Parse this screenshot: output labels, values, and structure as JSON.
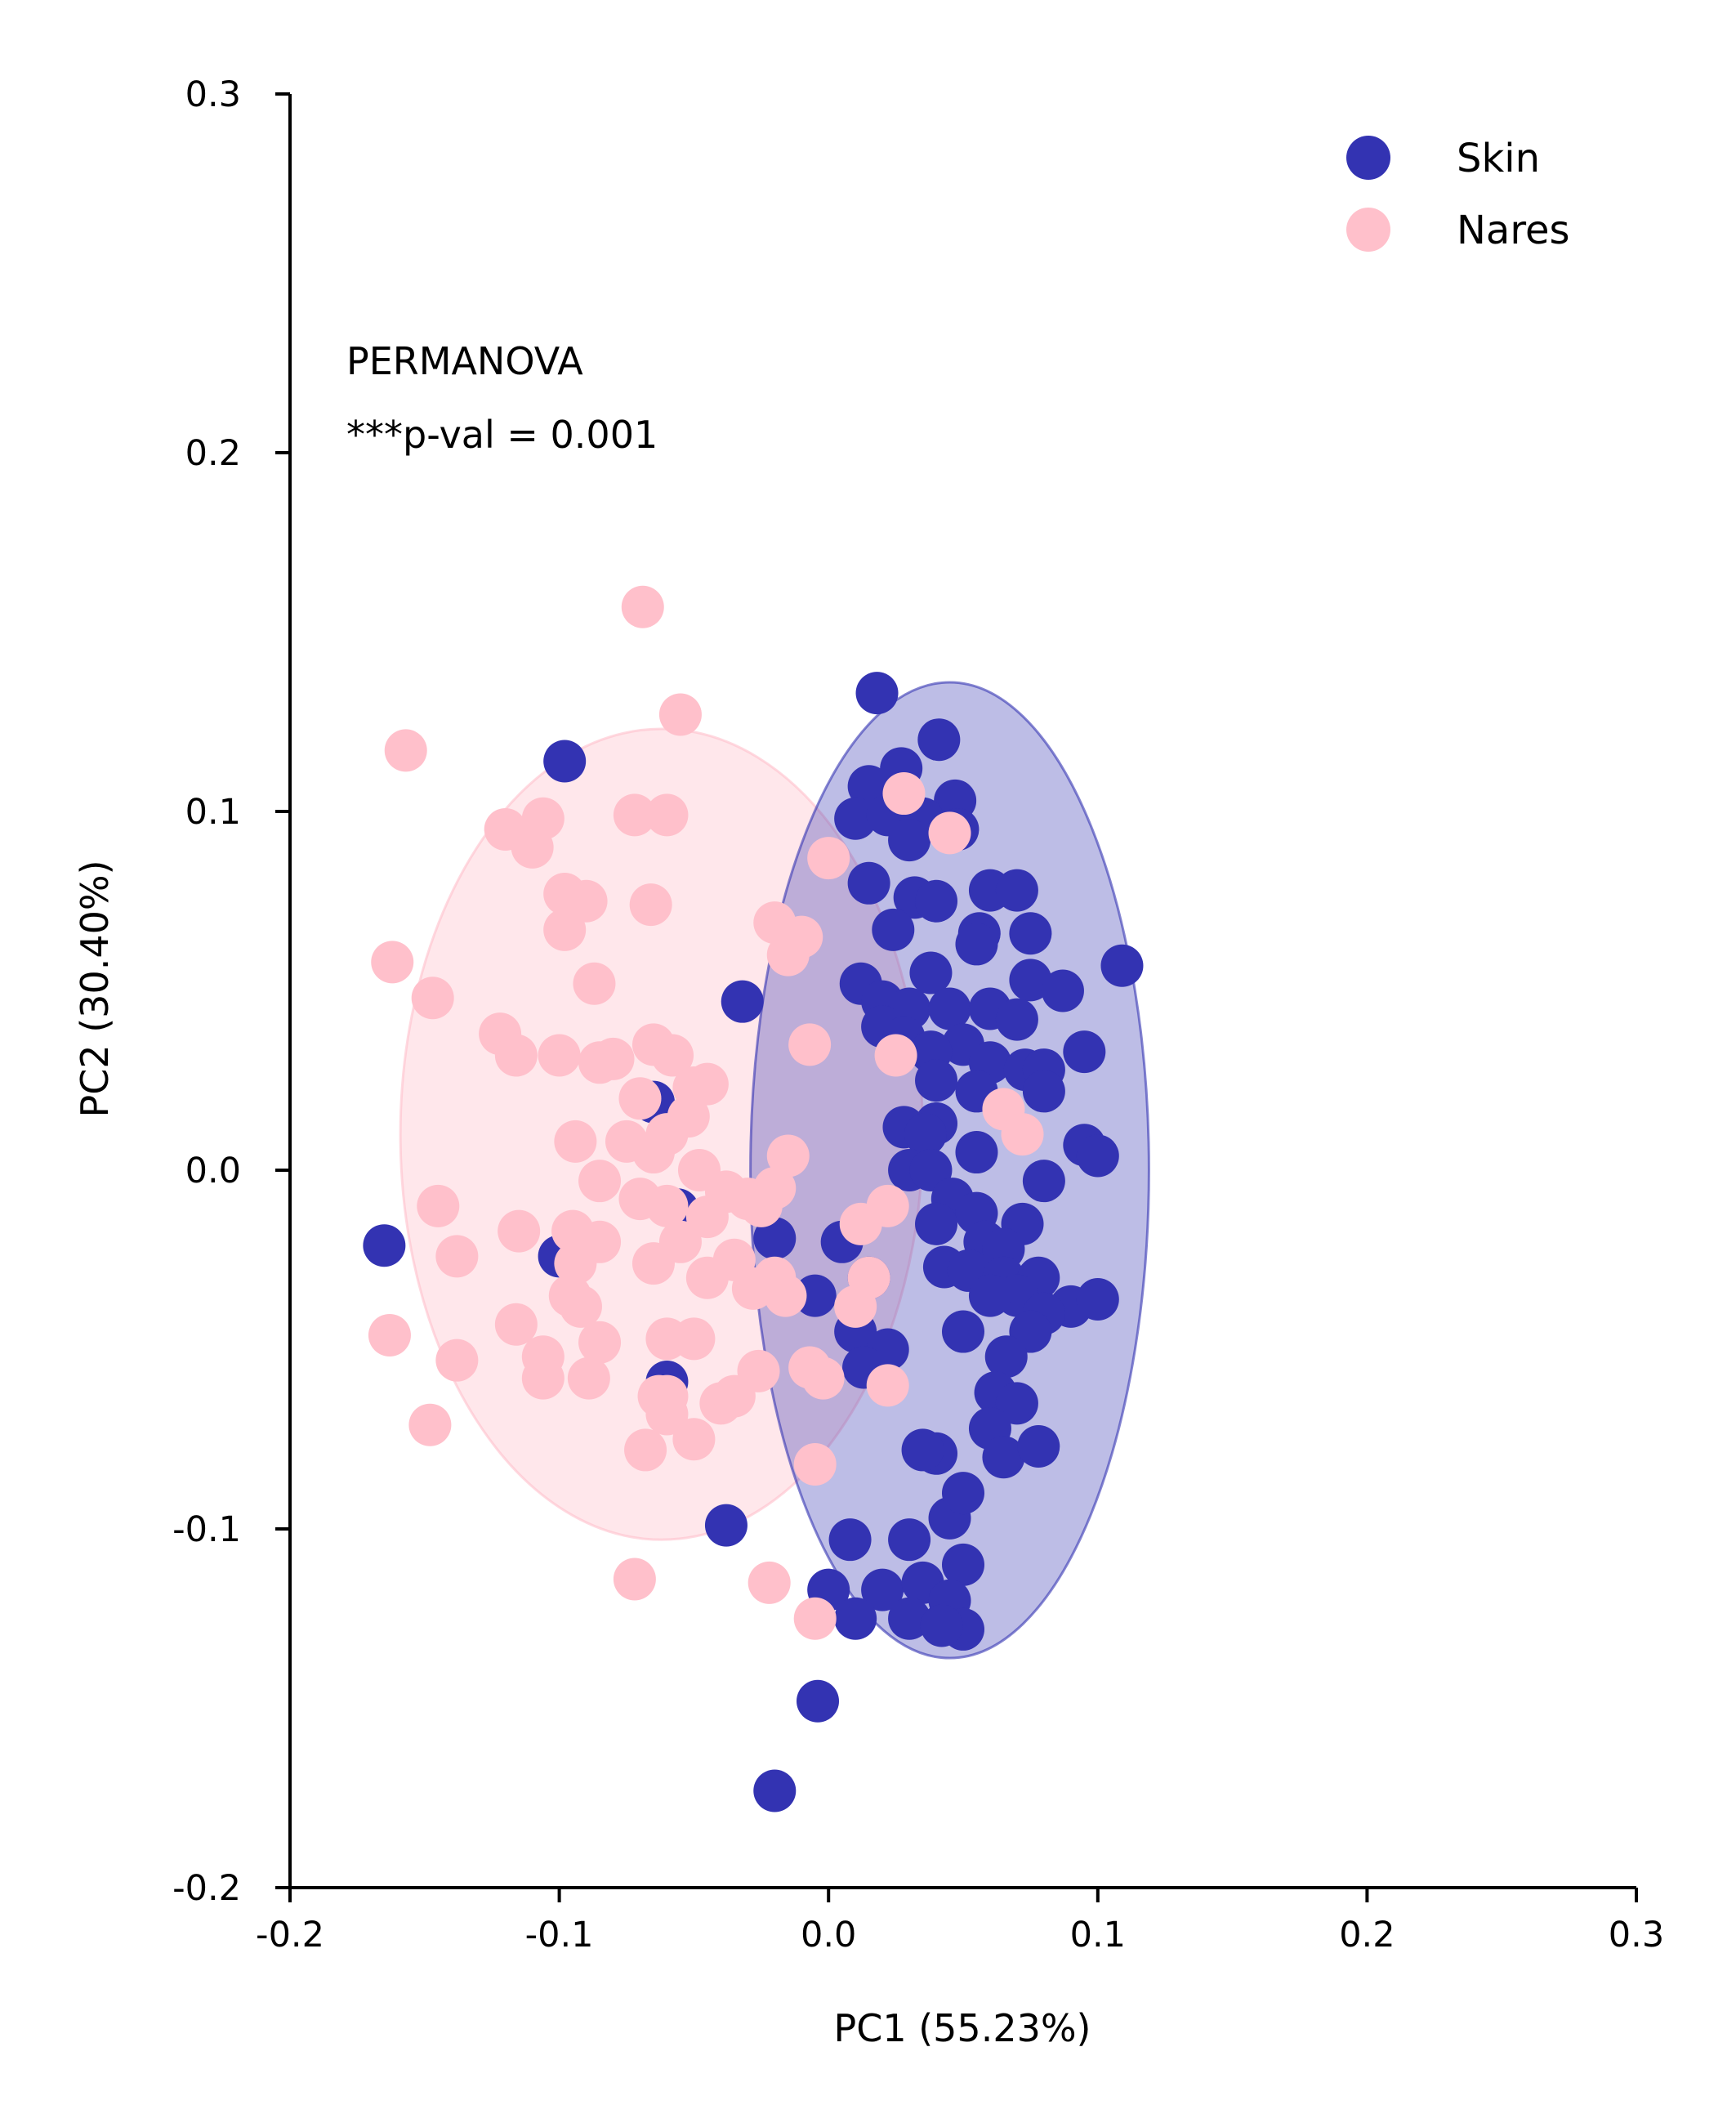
{
  "chart_data": {
    "type": "scatter",
    "title": "",
    "xlabel": "PC1 (55.23%)",
    "ylabel": "PC2 (30.40%)",
    "xlim": [
      -0.2,
      0.3
    ],
    "ylim": [
      -0.2,
      0.3
    ],
    "xticks": [
      -0.2,
      -0.1,
      0.0,
      0.1,
      0.2,
      0.3
    ],
    "yticks": [
      -0.2,
      -0.1,
      0.0,
      0.1,
      0.2,
      0.3
    ],
    "xtick_labels": [
      "-0.2",
      "-0.1",
      "0.0",
      "0.1",
      "0.2",
      "0.3"
    ],
    "ytick_labels": [
      "-0.2",
      "-0.1",
      "0.0",
      "0.1",
      "0.2",
      "0.3"
    ],
    "grid": false,
    "legend_position": "top-right",
    "annotations": [
      "PERMANOVA",
      "***p-val = 0.001"
    ],
    "series": [
      {
        "name": "Skin",
        "color": "#3333b2",
        "ellipse": {
          "cx": 0.045,
          "cy": 0.0,
          "rx": 0.074,
          "ry": 0.136
        },
        "points": [
          [
            0.018,
            0.133
          ],
          [
            0.041,
            0.12
          ],
          [
            -0.098,
            0.114
          ],
          [
            0.027,
            0.112
          ],
          [
            0.015,
            0.107
          ],
          [
            0.047,
            0.103
          ],
          [
            0.01,
            0.098
          ],
          [
            0.022,
            0.099
          ],
          [
            0.035,
            0.098
          ],
          [
            0.048,
            0.095
          ],
          [
            0.03,
            0.092
          ],
          [
            0.015,
            0.08
          ],
          [
            0.032,
            0.076
          ],
          [
            0.06,
            0.078
          ],
          [
            0.07,
            0.078
          ],
          [
            0.04,
            0.075
          ],
          [
            0.056,
            0.066
          ],
          [
            0.075,
            0.066
          ],
          [
            0.024,
            0.067
          ],
          [
            0.055,
            0.063
          ],
          [
            0.109,
            0.057
          ],
          [
            0.012,
            0.052
          ],
          [
            0.038,
            0.055
          ],
          [
            0.02,
            0.047
          ],
          [
            -0.032,
            0.047
          ],
          [
            0.075,
            0.053
          ],
          [
            0.087,
            0.05
          ],
          [
            0.03,
            0.045
          ],
          [
            0.045,
            0.045
          ],
          [
            0.06,
            0.045
          ],
          [
            0.07,
            0.042
          ],
          [
            0.02,
            0.04
          ],
          [
            0.028,
            0.037
          ],
          [
            0.05,
            0.035
          ],
          [
            0.038,
            0.033
          ],
          [
            0.06,
            0.03
          ],
          [
            0.073,
            0.028
          ],
          [
            0.08,
            0.028
          ],
          [
            0.095,
            0.033
          ],
          [
            0.04,
            0.025
          ],
          [
            0.055,
            0.022
          ],
          [
            0.08,
            0.022
          ],
          [
            -0.065,
            0.019
          ],
          [
            0.028,
            0.012
          ],
          [
            0.04,
            0.013
          ],
          [
            0.036,
            0.01
          ],
          [
            0.095,
            0.007
          ],
          [
            0.1,
            0.004
          ],
          [
            0.055,
            0.005
          ],
          [
            0.03,
            0.0
          ],
          [
            0.038,
            0.0
          ],
          [
            0.08,
            -0.003
          ],
          [
            0.046,
            -0.008
          ],
          [
            0.055,
            -0.012
          ],
          [
            0.04,
            -0.015
          ],
          [
            0.072,
            -0.015
          ],
          [
            0.058,
            -0.02
          ],
          [
            0.065,
            -0.022
          ],
          [
            -0.02,
            -0.019
          ],
          [
            0.005,
            -0.02
          ],
          [
            -0.1,
            -0.024
          ],
          [
            0.043,
            -0.027
          ],
          [
            0.052,
            -0.028
          ],
          [
            0.015,
            -0.03
          ],
          [
            0.065,
            -0.03
          ],
          [
            0.078,
            -0.03
          ],
          [
            0.09,
            -0.038
          ],
          [
            0.1,
            -0.036
          ],
          [
            0.07,
            -0.035
          ],
          [
            0.06,
            -0.035
          ],
          [
            0.08,
            -0.04
          ],
          [
            0.075,
            -0.045
          ],
          [
            0.05,
            -0.045
          ],
          [
            -0.005,
            -0.035
          ],
          [
            0.01,
            -0.045
          ],
          [
            0.022,
            -0.05
          ],
          [
            0.013,
            -0.055
          ],
          [
            0.066,
            -0.052
          ],
          [
            0.062,
            -0.062
          ],
          [
            0.07,
            -0.065
          ],
          [
            0.06,
            -0.072
          ],
          [
            0.065,
            -0.08
          ],
          [
            0.078,
            -0.077
          ],
          [
            0.04,
            -0.079
          ],
          [
            0.045,
            -0.097
          ],
          [
            0.05,
            -0.09
          ],
          [
            0.035,
            -0.078
          ],
          [
            -0.06,
            -0.059
          ],
          [
            -0.038,
            -0.099
          ],
          [
            0.008,
            -0.103
          ],
          [
            0.03,
            -0.103
          ],
          [
            0.05,
            -0.11
          ],
          [
            0.02,
            -0.117
          ],
          [
            0.035,
            -0.115
          ],
          [
            0.045,
            -0.12
          ],
          [
            0.0,
            -0.117
          ],
          [
            0.01,
            -0.125
          ],
          [
            0.03,
            -0.125
          ],
          [
            0.05,
            -0.128
          ],
          [
            0.042,
            -0.127
          ],
          [
            -0.165,
            -0.021
          ],
          [
            -0.056,
            -0.011
          ],
          [
            -0.004,
            -0.148
          ],
          [
            -0.02,
            -0.173
          ]
        ]
      },
      {
        "name": "Nares",
        "color": "#ffc0cb",
        "ellipse": {
          "cx": -0.062,
          "cy": 0.01,
          "rx": 0.097,
          "ry": 0.113
        },
        "points": [
          [
            -0.069,
            0.157
          ],
          [
            -0.055,
            0.127
          ],
          [
            -0.157,
            0.117
          ],
          [
            -0.072,
            0.099
          ],
          [
            -0.06,
            0.099
          ],
          [
            -0.12,
            0.095
          ],
          [
            -0.106,
            0.098
          ],
          [
            -0.11,
            0.09
          ],
          [
            -0.098,
            0.077
          ],
          [
            -0.09,
            0.075
          ],
          [
            -0.066,
            0.074
          ],
          [
            -0.098,
            0.067
          ],
          [
            -0.02,
            0.069
          ],
          [
            -0.01,
            0.065
          ],
          [
            0.0,
            0.087
          ],
          [
            -0.015,
            0.06
          ],
          [
            -0.162,
            0.058
          ],
          [
            -0.087,
            0.052
          ],
          [
            -0.147,
            0.048
          ],
          [
            -0.122,
            0.038
          ],
          [
            -0.116,
            0.032
          ],
          [
            -0.1,
            0.032
          ],
          [
            -0.085,
            0.03
          ],
          [
            -0.08,
            0.031
          ],
          [
            -0.065,
            0.035
          ],
          [
            -0.058,
            0.032
          ],
          [
            -0.05,
            0.023
          ],
          [
            -0.045,
            0.024
          ],
          [
            -0.06,
            0.01
          ],
          [
            -0.07,
            0.02
          ],
          [
            -0.052,
            0.015
          ],
          [
            -0.094,
            0.008
          ],
          [
            -0.075,
            0.008
          ],
          [
            -0.065,
            0.005
          ],
          [
            -0.048,
            0.0
          ],
          [
            -0.085,
            -0.003
          ],
          [
            -0.07,
            -0.008
          ],
          [
            -0.145,
            -0.01
          ],
          [
            -0.115,
            -0.017
          ],
          [
            -0.095,
            -0.017
          ],
          [
            -0.085,
            -0.02
          ],
          [
            -0.06,
            -0.01
          ],
          [
            -0.045,
            -0.013
          ],
          [
            -0.038,
            -0.006
          ],
          [
            -0.03,
            -0.008
          ],
          [
            -0.015,
            0.004
          ],
          [
            -0.02,
            -0.005
          ],
          [
            -0.025,
            -0.01
          ],
          [
            -0.138,
            -0.024
          ],
          [
            -0.094,
            -0.026
          ],
          [
            -0.065,
            -0.026
          ],
          [
            -0.055,
            -0.02
          ],
          [
            -0.045,
            -0.03
          ],
          [
            -0.035,
            -0.025
          ],
          [
            -0.028,
            -0.033
          ],
          [
            -0.02,
            -0.03
          ],
          [
            -0.016,
            -0.035
          ],
          [
            -0.116,
            -0.043
          ],
          [
            -0.096,
            -0.035
          ],
          [
            -0.092,
            -0.038
          ],
          [
            -0.163,
            -0.046
          ],
          [
            -0.085,
            -0.048
          ],
          [
            -0.06,
            -0.047
          ],
          [
            -0.05,
            -0.047
          ],
          [
            -0.106,
            -0.052
          ],
          [
            -0.138,
            -0.053
          ],
          [
            -0.106,
            -0.058
          ],
          [
            -0.089,
            -0.058
          ],
          [
            -0.063,
            -0.063
          ],
          [
            -0.06,
            -0.068
          ],
          [
            -0.04,
            -0.065
          ],
          [
            -0.035,
            -0.063
          ],
          [
            -0.026,
            -0.056
          ],
          [
            -0.007,
            -0.055
          ],
          [
            -0.002,
            -0.058
          ],
          [
            -0.148,
            -0.071
          ],
          [
            -0.068,
            -0.078
          ],
          [
            -0.05,
            -0.075
          ],
          [
            -0.005,
            -0.082
          ],
          [
            -0.072,
            -0.114
          ],
          [
            -0.022,
            -0.115
          ],
          [
            -0.005,
            -0.125
          ],
          [
            0.065,
            0.017
          ],
          [
            0.072,
            0.01
          ],
          [
            0.028,
            0.105
          ],
          [
            0.045,
            0.094
          ],
          [
            0.025,
            0.032
          ],
          [
            -0.007,
            0.035
          ],
          [
            0.012,
            -0.015
          ],
          [
            0.022,
            -0.01
          ],
          [
            0.01,
            -0.038
          ],
          [
            0.015,
            -0.03
          ],
          [
            0.022,
            -0.06
          ],
          [
            -0.06,
            -0.063
          ]
        ]
      }
    ]
  }
}
